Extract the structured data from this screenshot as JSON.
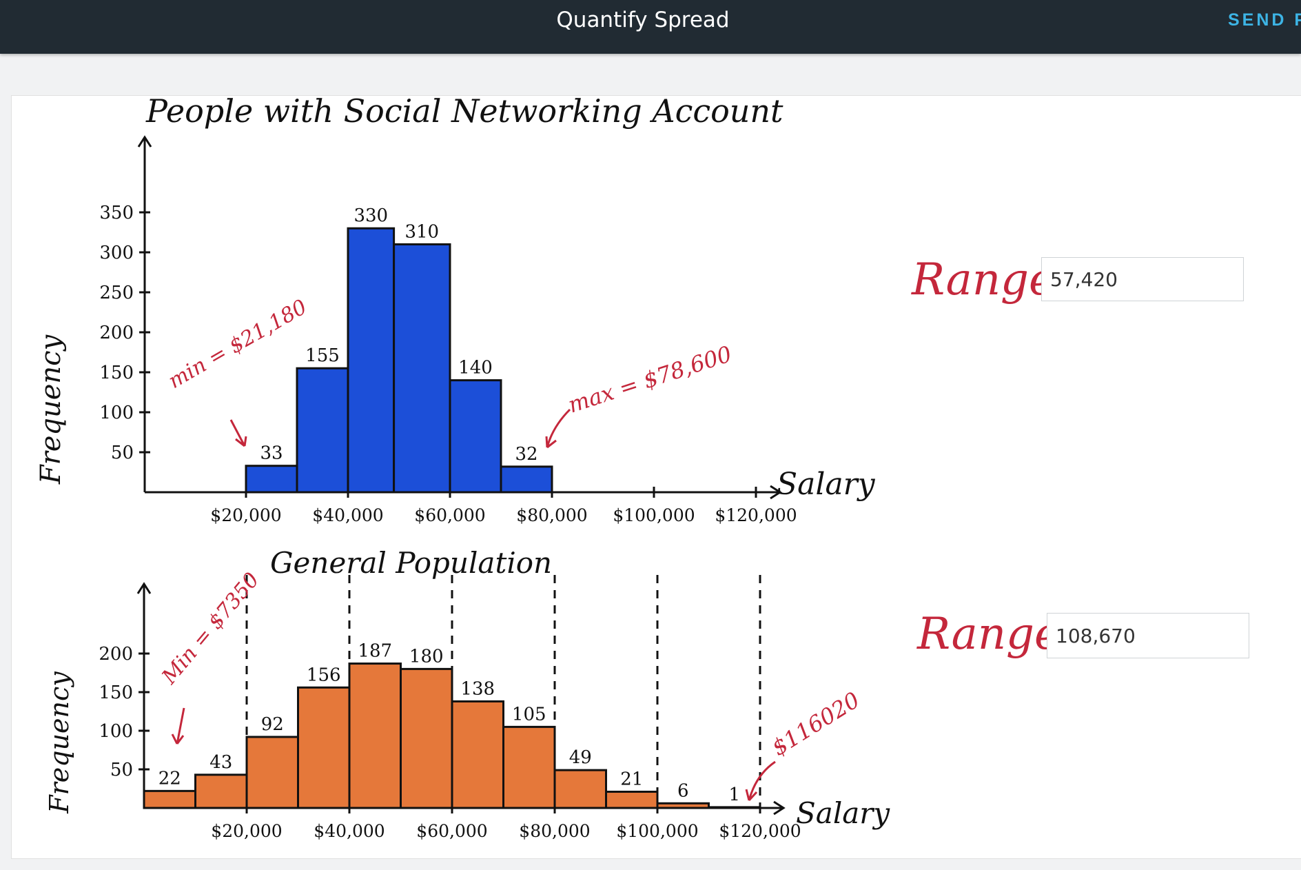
{
  "header": {
    "title": "Quantify Spread",
    "send_label": "SEND F"
  },
  "colors": {
    "header_bg": "#212b33",
    "accent": "#3db4e5",
    "blue_bars": "#1c4fd8",
    "orange_bars": "#e5783a",
    "annotation_red": "#c4273b"
  },
  "range_inputs": {
    "top": {
      "label": "Range =",
      "value": "57,420"
    },
    "bottom": {
      "label": "Range =",
      "value": "108,670"
    }
  },
  "chart_data": [
    {
      "type": "bar",
      "title": "People with Social Networking Account",
      "xlabel": "Salary",
      "ylabel": "Frequency",
      "ylim": [
        0,
        350
      ],
      "y_ticks": [
        "50",
        "100",
        "150",
        "200",
        "250",
        "300",
        "350"
      ],
      "x_ticks": [
        "$20,000",
        "$40,000",
        "$60,000",
        "$80,000",
        "$100,000",
        "$120,000"
      ],
      "bins": [
        {
          "start": 20000,
          "end": 30000,
          "value": 33
        },
        {
          "start": 30000,
          "end": 40000,
          "value": 155
        },
        {
          "start": 40000,
          "end": 49000,
          "value": 330
        },
        {
          "start": 49000,
          "end": 60000,
          "value": 310
        },
        {
          "start": 60000,
          "end": 70000,
          "value": 140
        },
        {
          "start": 70000,
          "end": 80000,
          "value": 32
        }
      ],
      "value_labels": [
        "33",
        "155",
        "330",
        "310",
        "140",
        "32"
      ],
      "annotations": [
        {
          "text": "min = $21,180"
        },
        {
          "text": "max = $78,600"
        }
      ]
    },
    {
      "type": "bar",
      "title": "General Population",
      "xlabel": "Salary",
      "ylabel": "Frequency",
      "ylim": [
        0,
        200
      ],
      "y_ticks": [
        "50",
        "100",
        "150",
        "200"
      ],
      "x_ticks": [
        "$20,000",
        "$40,000",
        "$60,000",
        "$80,000",
        "$100,000",
        "$120,000"
      ],
      "bins": [
        {
          "start": 0,
          "end": 10000,
          "value": 22
        },
        {
          "start": 10000,
          "end": 20000,
          "value": 43
        },
        {
          "start": 20000,
          "end": 30000,
          "value": 92
        },
        {
          "start": 30000,
          "end": 40000,
          "value": 156
        },
        {
          "start": 40000,
          "end": 50000,
          "value": 187
        },
        {
          "start": 50000,
          "end": 60000,
          "value": 180
        },
        {
          "start": 60000,
          "end": 70000,
          "value": 138
        },
        {
          "start": 70000,
          "end": 80000,
          "value": 105
        },
        {
          "start": 80000,
          "end": 90000,
          "value": 49
        },
        {
          "start": 90000,
          "end": 100000,
          "value": 21
        },
        {
          "start": 100000,
          "end": 110000,
          "value": 6
        },
        {
          "start": 110000,
          "end": 120000,
          "value": 1
        }
      ],
      "value_labels": [
        "22",
        "43",
        "92",
        "156",
        "187",
        "180",
        "138",
        "105",
        "49",
        "21",
        "6",
        "1"
      ],
      "annotations": [
        {
          "text": "Min = $7350"
        },
        {
          "text": "$116020"
        }
      ]
    }
  ]
}
